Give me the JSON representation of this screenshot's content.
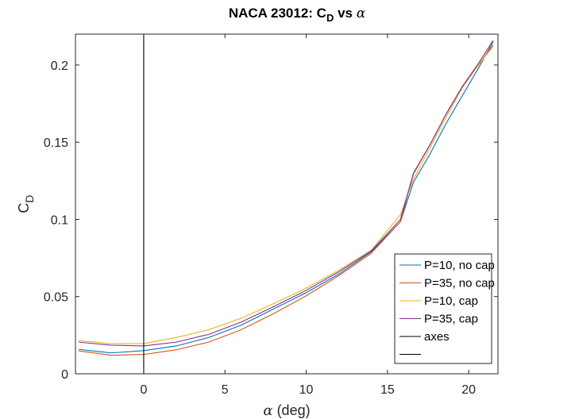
{
  "chart_data": {
    "type": "line",
    "title_main": "NACA 23012: C",
    "title_sub": "D",
    "title_tail": " vs ",
    "title_alpha": "α",
    "xlabel_symbol": "α",
    "xlabel_text": " (deg)",
    "ylabel_main": "C",
    "ylabel_sub": "D",
    "xlim": [
      -4.2,
      21.8
    ],
    "ylim": [
      0,
      0.22
    ],
    "xticks": [
      0,
      5,
      10,
      15,
      20
    ],
    "xtick_labels": [
      "0",
      "5",
      "10",
      "15",
      "20"
    ],
    "yticks": [
      0,
      0.05,
      0.1,
      0.15,
      0.2
    ],
    "ytick_labels": [
      "0",
      "0.05",
      "0.1",
      "0.15",
      "0.2"
    ],
    "grid": false,
    "legend_position": "lower-right",
    "series": [
      {
        "name": "P=10, no cap",
        "color": "#0072BD",
        "x": [
          -4,
          -2,
          0,
          2,
          4,
          6,
          8,
          10,
          12,
          14,
          15.8,
          16.6,
          17.6,
          18.6,
          19.6,
          20.6,
          21.5
        ],
        "y": [
          0.0158,
          0.0135,
          0.015,
          0.018,
          0.0235,
          0.0315,
          0.042,
          0.0525,
          0.0645,
          0.079,
          0.0985,
          0.124,
          0.142,
          0.162,
          0.18,
          0.198,
          0.215
        ]
      },
      {
        "name": "P=35, no cap",
        "color": "#D95319",
        "x": [
          -4,
          -2,
          0,
          2,
          4,
          6,
          8,
          10,
          12,
          14,
          15.8,
          16.6,
          17.6,
          18.6,
          19.6,
          20.6,
          21.5
        ],
        "y": [
          0.0148,
          0.012,
          0.0125,
          0.0155,
          0.0205,
          0.0285,
          0.039,
          0.0505,
          0.0635,
          0.078,
          0.0985,
          0.1295,
          0.148,
          0.168,
          0.186,
          0.2,
          0.213
        ]
      },
      {
        "name": "P=10, cap",
        "color": "#EDB120",
        "x": [
          -4,
          -2,
          0,
          2,
          4,
          6,
          8,
          10,
          12,
          14,
          15.8,
          16.6,
          17.6,
          18.6,
          19.6,
          20.6,
          21.5
        ],
        "y": [
          0.0215,
          0.0195,
          0.0195,
          0.0235,
          0.0285,
          0.036,
          0.0455,
          0.0555,
          0.067,
          0.08,
          0.103,
          0.126,
          0.146,
          0.166,
          0.185,
          0.2,
          0.212
        ]
      },
      {
        "name": "P=35, cap",
        "color": "#7E2F8E",
        "x": [
          -4,
          -2,
          0,
          2,
          4,
          6,
          8,
          10,
          12,
          14,
          15.8,
          16.6,
          17.6,
          18.6,
          19.6,
          20.6,
          21.5
        ],
        "y": [
          0.0205,
          0.0185,
          0.018,
          0.0205,
          0.0255,
          0.0335,
          0.0435,
          0.054,
          0.066,
          0.0795,
          0.1,
          0.13,
          0.148,
          0.168,
          0.186,
          0.201,
          0.216
        ]
      },
      {
        "name": "axes",
        "color": "#000000",
        "x": [
          0,
          0
        ],
        "y": [
          0,
          0.22
        ]
      },
      {
        "name": "",
        "color": "#000000",
        "x": [],
        "y": []
      }
    ]
  }
}
